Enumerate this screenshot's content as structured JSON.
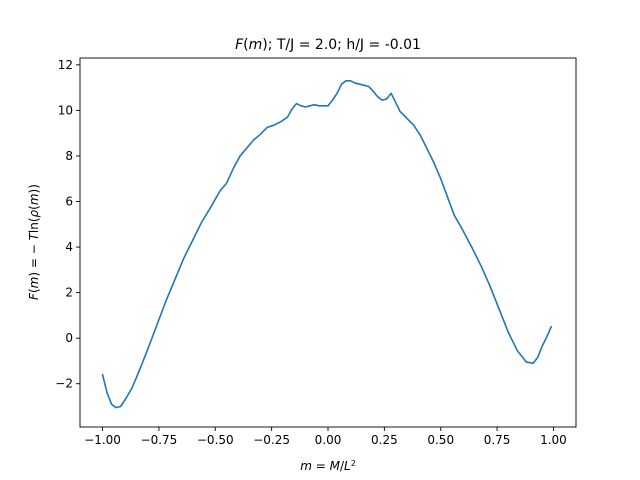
{
  "chart_data": {
    "type": "line",
    "title_parts": [
      {
        "text": "F",
        "italic": true
      },
      {
        "text": "(",
        "italic": false
      },
      {
        "text": "m",
        "italic": true
      },
      {
        "text": "); T/J = 2.0; h/J = -0.01",
        "italic": false
      }
    ],
    "xlabel_parts": [
      {
        "text": "m",
        "italic": true
      },
      {
        "text": " = ",
        "italic": false
      },
      {
        "text": "M",
        "italic": true
      },
      {
        "text": "/",
        "italic": false
      },
      {
        "text": "L",
        "italic": true
      },
      {
        "text": "2",
        "italic": false,
        "sup": true
      }
    ],
    "ylabel_parts": [
      {
        "text": "F",
        "italic": true
      },
      {
        "text": "(",
        "italic": false
      },
      {
        "text": "m",
        "italic": true
      },
      {
        "text": ") = − ",
        "italic": false
      },
      {
        "text": "T",
        "italic": true
      },
      {
        "text": "ln(",
        "italic": false
      },
      {
        "text": "ρ",
        "italic": true
      },
      {
        "text": "(",
        "italic": false
      },
      {
        "text": "m",
        "italic": true
      },
      {
        "text": "))",
        "italic": false
      }
    ],
    "xlim": [
      -1.1,
      1.1
    ],
    "ylim": [
      -3.9,
      12.3
    ],
    "xticks": [
      -1.0,
      -0.75,
      -0.5,
      -0.25,
      0.0,
      0.25,
      0.5,
      0.75,
      1.0
    ],
    "xtick_labels": [
      "−1.00",
      "−0.75",
      "−0.50",
      "−0.25",
      "0.00",
      "0.25",
      "0.50",
      "0.75",
      "1.00"
    ],
    "yticks": [
      -2,
      0,
      2,
      4,
      6,
      8,
      10,
      12
    ],
    "ytick_labels": [
      "−2",
      "0",
      "2",
      "4",
      "6",
      "8",
      "10",
      "12"
    ],
    "grid": false,
    "series": [
      {
        "color": "#1f77b4",
        "x": [
          -1.0,
          -0.98,
          -0.96,
          -0.94,
          -0.92,
          -0.9,
          -0.87,
          -0.84,
          -0.8,
          -0.76,
          -0.72,
          -0.68,
          -0.64,
          -0.6,
          -0.56,
          -0.52,
          -0.5,
          -0.48,
          -0.45,
          -0.42,
          -0.39,
          -0.36,
          -0.33,
          -0.3,
          -0.27,
          -0.24,
          -0.21,
          -0.18,
          -0.16,
          -0.14,
          -0.12,
          -0.1,
          -0.08,
          -0.06,
          -0.04,
          -0.02,
          0.0,
          0.02,
          0.04,
          0.06,
          0.08,
          0.1,
          0.12,
          0.14,
          0.16,
          0.18,
          0.2,
          0.22,
          0.24,
          0.26,
          0.28,
          0.3,
          0.32,
          0.35,
          0.38,
          0.41,
          0.44,
          0.47,
          0.5,
          0.53,
          0.56,
          0.6,
          0.64,
          0.68,
          0.72,
          0.76,
          0.8,
          0.84,
          0.88,
          0.91,
          0.93,
          0.95,
          0.97,
          0.99
        ],
        "y": [
          -1.6,
          -2.4,
          -2.9,
          -3.05,
          -3.0,
          -2.7,
          -2.2,
          -1.5,
          -0.5,
          0.55,
          1.6,
          2.55,
          3.5,
          4.3,
          5.1,
          5.75,
          6.1,
          6.45,
          6.8,
          7.45,
          8.0,
          8.35,
          8.7,
          8.95,
          9.25,
          9.35,
          9.5,
          9.7,
          10.05,
          10.3,
          10.2,
          10.15,
          10.2,
          10.25,
          10.2,
          10.2,
          10.2,
          10.45,
          10.75,
          11.15,
          11.3,
          11.3,
          11.2,
          11.15,
          11.1,
          11.05,
          10.85,
          10.6,
          10.45,
          10.5,
          10.75,
          10.35,
          9.95,
          9.65,
          9.35,
          8.9,
          8.3,
          7.7,
          7.0,
          6.2,
          5.4,
          4.7,
          3.95,
          3.15,
          2.25,
          1.25,
          0.25,
          -0.55,
          -1.05,
          -1.1,
          -0.85,
          -0.35,
          0.05,
          0.5
        ]
      }
    ]
  }
}
